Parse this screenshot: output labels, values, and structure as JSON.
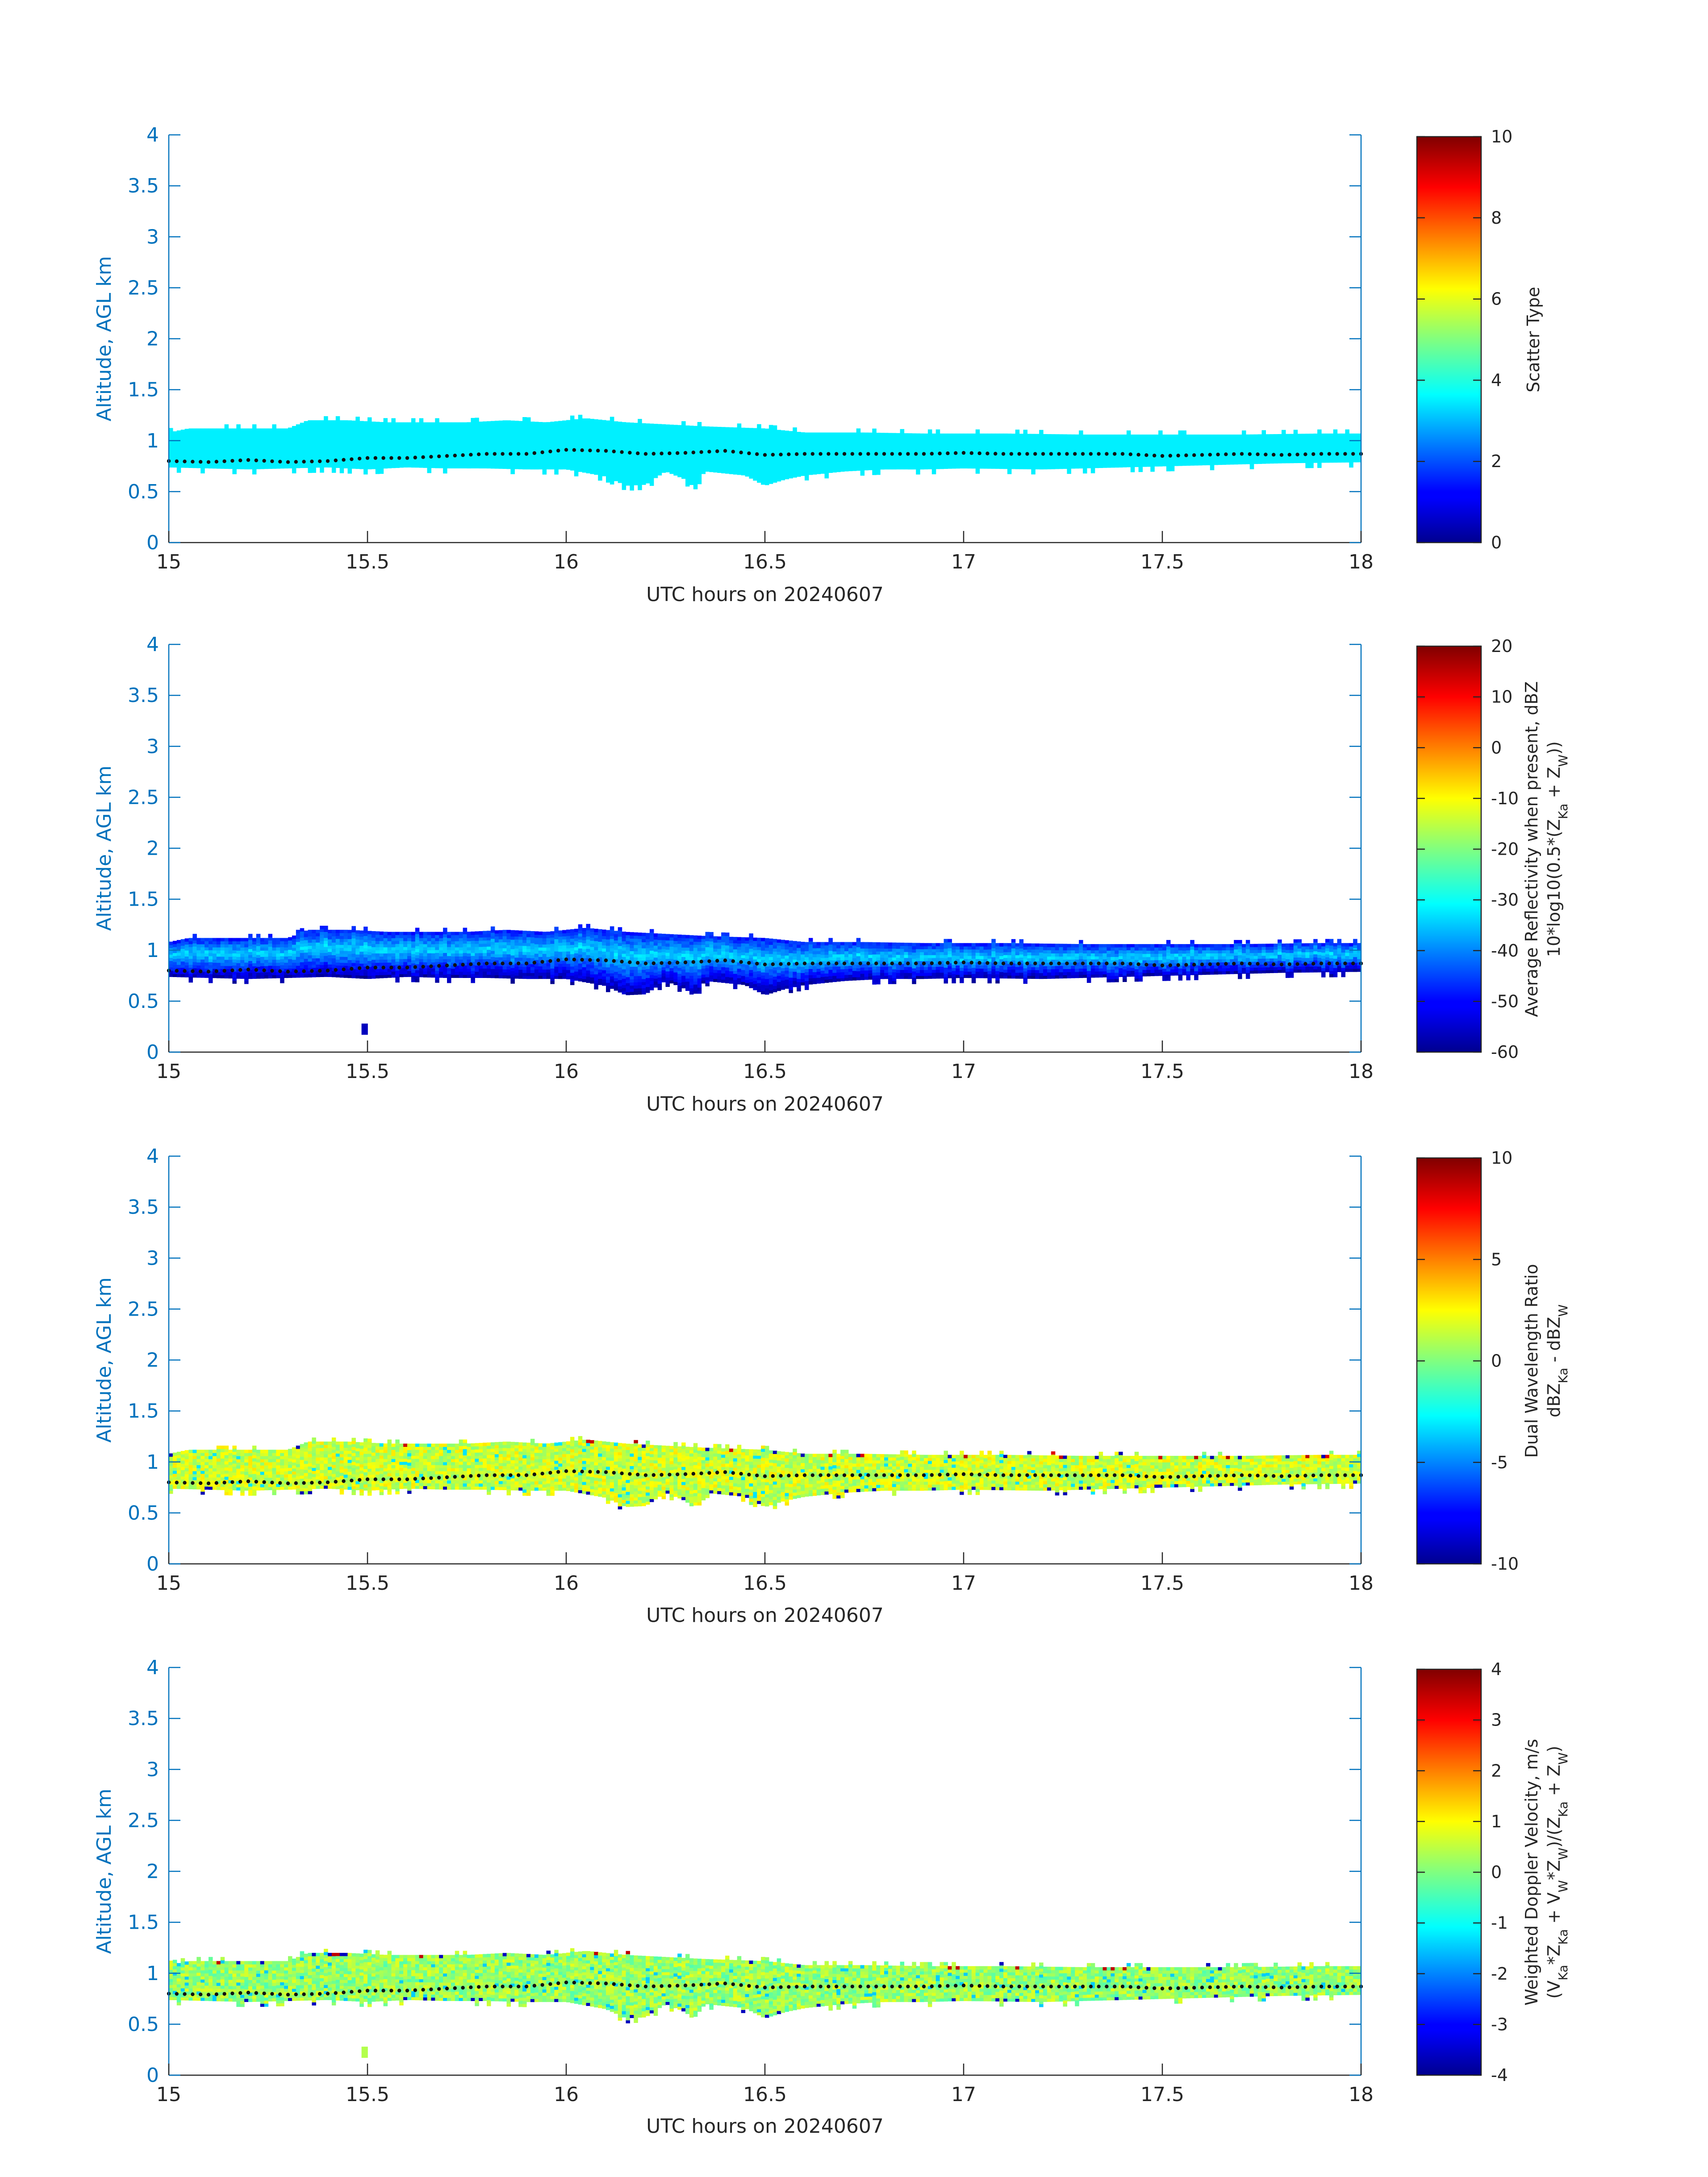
{
  "chart_data": [
    {
      "type": "heatmap",
      "xlabel": "UTC hours on 20240607",
      "ylabel": "Altitude, AGL km",
      "xlim": [
        15,
        18
      ],
      "ylim": [
        0,
        4
      ],
      "xticks": [
        "15",
        "15.5",
        "16",
        "16.5",
        "17",
        "17.5",
        "18"
      ],
      "yticks": [
        "0",
        "0.5",
        "1",
        "1.5",
        "2",
        "2.5",
        "3",
        "3.5",
        "4"
      ],
      "colorbar": {
        "label_lines": [
          "Scatter Type"
        ],
        "range": [
          0,
          10
        ],
        "ticks": [
          "0",
          "2",
          "4",
          "6",
          "8",
          "10"
        ],
        "colormap": "jet"
      },
      "field": "scatter",
      "layer_value": 3.6
    },
    {
      "type": "heatmap",
      "xlabel": "UTC hours on 20240607",
      "ylabel": "Altitude, AGL km",
      "xlim": [
        15,
        18
      ],
      "ylim": [
        0,
        4
      ],
      "xticks": [
        "15",
        "15.5",
        "16",
        "16.5",
        "17",
        "17.5",
        "18"
      ],
      "yticks": [
        "0",
        "0.5",
        "1",
        "1.5",
        "2",
        "2.5",
        "3",
        "3.5",
        "4"
      ],
      "colorbar": {
        "label_lines": [
          "Average Reflectivity when present, dBZ",
          "10*log10(0.5*(Z_Ka + Z_W))"
        ],
        "range": [
          -60,
          20
        ],
        "ticks": [
          "-60",
          "-50",
          "-40",
          "-30",
          "-20",
          "-10",
          "0",
          "10",
          "20"
        ],
        "colormap": "jet"
      },
      "field": "reflectivity",
      "isolated_echo": {
        "x": 15.49,
        "y_range": [
          0.17,
          0.28
        ]
      }
    },
    {
      "type": "heatmap",
      "xlabel": "UTC hours on 20240607",
      "ylabel": "Altitude, AGL km",
      "xlim": [
        15,
        18
      ],
      "ylim": [
        0,
        4
      ],
      "xticks": [
        "15",
        "15.5",
        "16",
        "16.5",
        "17",
        "17.5",
        "18"
      ],
      "yticks": [
        "0",
        "0.5",
        "1",
        "1.5",
        "2",
        "2.5",
        "3",
        "3.5",
        "4"
      ],
      "colorbar": {
        "label_lines": [
          "Dual Wavelength Ratio",
          "dBZ_Ka - dBZ_W"
        ],
        "range": [
          -10,
          10
        ],
        "ticks": [
          "-10",
          "-5",
          "0",
          "5",
          "10"
        ],
        "colormap": "jet"
      },
      "field": "dwr"
    },
    {
      "type": "heatmap",
      "xlabel": "UTC hours on 20240607",
      "ylabel": "Altitude, AGL km",
      "xlim": [
        15,
        18
      ],
      "ylim": [
        0,
        4
      ],
      "xticks": [
        "15",
        "15.5",
        "16",
        "16.5",
        "17",
        "17.5",
        "18"
      ],
      "yticks": [
        "0",
        "0.5",
        "1",
        "1.5",
        "2",
        "2.5",
        "3",
        "3.5",
        "4"
      ],
      "colorbar": {
        "label_lines": [
          "Weighted Doppler Velocity, m/s",
          "(V_Ka*Z_Ka + V_W*Z_W)/(Z_Ka + Z_W)"
        ],
        "range": [
          -4,
          4
        ],
        "ticks": [
          "-4",
          "-3",
          "-2",
          "-1",
          "0",
          "1",
          "2",
          "3",
          "4"
        ],
        "colormap": "jet"
      },
      "field": "velocity",
      "isolated_echo": {
        "x": 15.49,
        "y_range": [
          0.17,
          0.28
        ]
      }
    }
  ],
  "layer": {
    "time_range": [
      15,
      18
    ],
    "cloud_top_km": [
      [
        15.0,
        1.08
      ],
      [
        15.05,
        1.12
      ],
      [
        15.1,
        1.12
      ],
      [
        15.2,
        1.12
      ],
      [
        15.3,
        1.12
      ],
      [
        15.35,
        1.2
      ],
      [
        15.45,
        1.2
      ],
      [
        15.55,
        1.18
      ],
      [
        15.65,
        1.18
      ],
      [
        15.75,
        1.18
      ],
      [
        15.85,
        1.2
      ],
      [
        15.95,
        1.18
      ],
      [
        16.05,
        1.22
      ],
      [
        16.15,
        1.18
      ],
      [
        16.25,
        1.16
      ],
      [
        16.35,
        1.14
      ],
      [
        16.5,
        1.12
      ],
      [
        16.6,
        1.08
      ],
      [
        16.75,
        1.08
      ],
      [
        16.9,
        1.07
      ],
      [
        17.1,
        1.07
      ],
      [
        17.3,
        1.06
      ],
      [
        17.5,
        1.06
      ],
      [
        17.7,
        1.06
      ],
      [
        17.9,
        1.07
      ],
      [
        18.0,
        1.07
      ]
    ],
    "cloud_base_km": [
      [
        15.0,
        0.74
      ],
      [
        15.1,
        0.73
      ],
      [
        15.2,
        0.72
      ],
      [
        15.3,
        0.73
      ],
      [
        15.4,
        0.74
      ],
      [
        15.5,
        0.72
      ],
      [
        15.6,
        0.74
      ],
      [
        15.7,
        0.73
      ],
      [
        15.8,
        0.73
      ],
      [
        15.9,
        0.72
      ],
      [
        16.0,
        0.72
      ],
      [
        16.1,
        0.65
      ],
      [
        16.15,
        0.56
      ],
      [
        16.2,
        0.57
      ],
      [
        16.25,
        0.7
      ],
      [
        16.3,
        0.62
      ],
      [
        16.32,
        0.55
      ],
      [
        16.35,
        0.7
      ],
      [
        16.45,
        0.66
      ],
      [
        16.5,
        0.56
      ],
      [
        16.55,
        0.62
      ],
      [
        16.6,
        0.66
      ],
      [
        16.7,
        0.7
      ],
      [
        16.8,
        0.72
      ],
      [
        16.9,
        0.72
      ],
      [
        17.0,
        0.73
      ],
      [
        17.2,
        0.72
      ],
      [
        17.4,
        0.74
      ],
      [
        17.6,
        0.76
      ],
      [
        17.8,
        0.78
      ],
      [
        18.0,
        0.79
      ]
    ],
    "dotted_line_km": [
      [
        15.0,
        0.8
      ],
      [
        15.1,
        0.79
      ],
      [
        15.2,
        0.81
      ],
      [
        15.3,
        0.79
      ],
      [
        15.4,
        0.8
      ],
      [
        15.5,
        0.83
      ],
      [
        15.6,
        0.83
      ],
      [
        15.7,
        0.85
      ],
      [
        15.8,
        0.87
      ],
      [
        15.9,
        0.87
      ],
      [
        16.0,
        0.91
      ],
      [
        16.1,
        0.9
      ],
      [
        16.2,
        0.87
      ],
      [
        16.3,
        0.88
      ],
      [
        16.4,
        0.9
      ],
      [
        16.5,
        0.86
      ],
      [
        16.6,
        0.87
      ],
      [
        16.7,
        0.87
      ],
      [
        16.8,
        0.87
      ],
      [
        16.9,
        0.87
      ],
      [
        17.0,
        0.88
      ],
      [
        17.1,
        0.87
      ],
      [
        17.2,
        0.87
      ],
      [
        17.3,
        0.87
      ],
      [
        17.4,
        0.87
      ],
      [
        17.5,
        0.85
      ],
      [
        17.6,
        0.86
      ],
      [
        17.7,
        0.87
      ],
      [
        17.8,
        0.86
      ],
      [
        17.9,
        0.87
      ],
      [
        18.0,
        0.87
      ]
    ]
  }
}
